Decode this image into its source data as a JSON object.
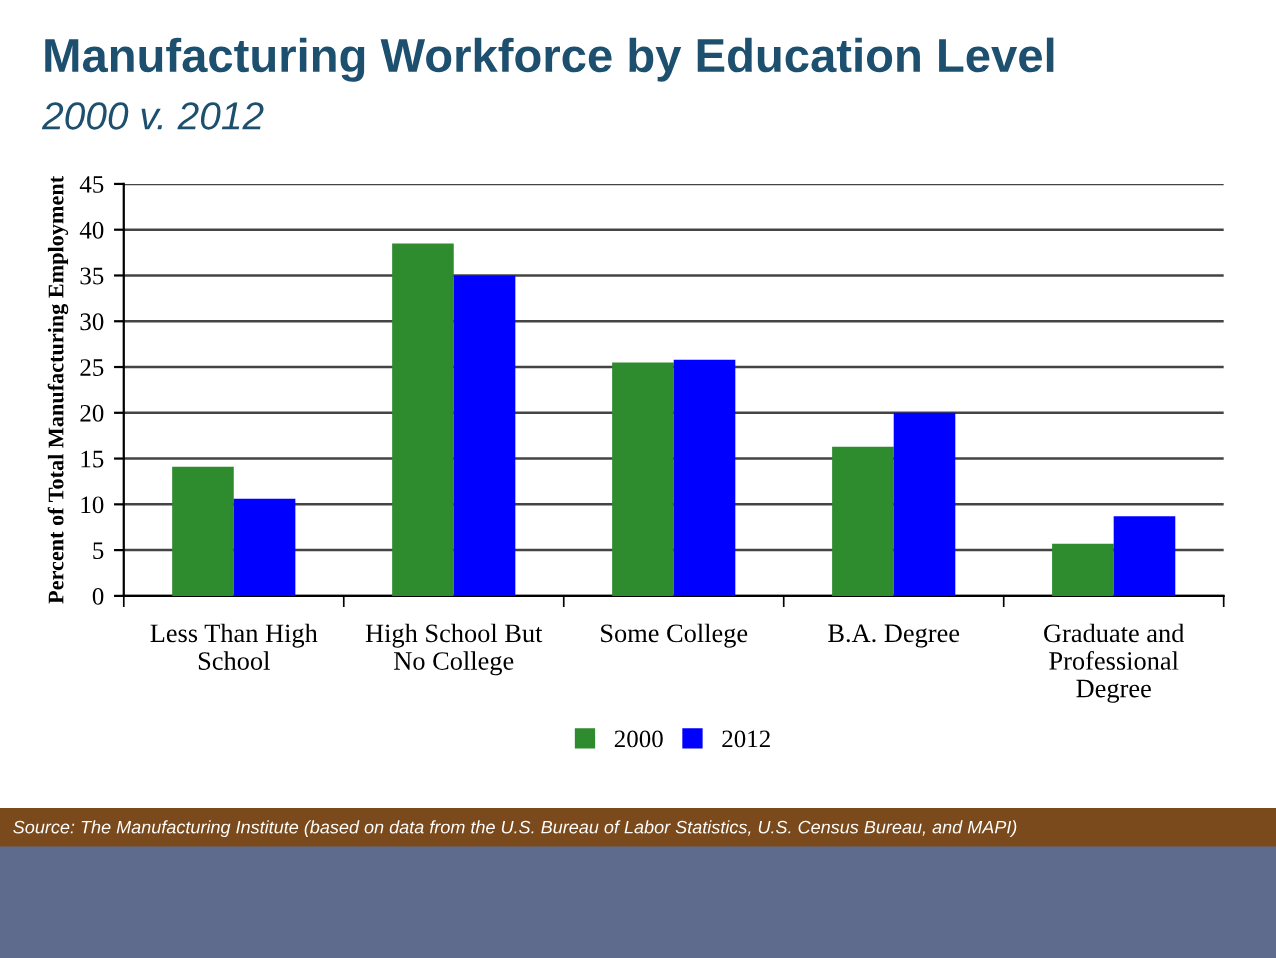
{
  "chart_data": {
    "type": "bar",
    "title": "Manufacturing Workforce by Education Level",
    "subtitle": "2000 v. 2012",
    "ylabel": "Percent of Total Manufacturing Employment",
    "categories": [
      "Less Than High School",
      "High School But No College",
      "Some College",
      "B.A. Degree",
      "Graduate and Professional Degree"
    ],
    "series": [
      {
        "name": "2000",
        "color": "#2e8b2e",
        "values": [
          14.1,
          38.5,
          25.5,
          16.3,
          5.7
        ]
      },
      {
        "name": "2012",
        "color": "#0000ff",
        "values": [
          10.6,
          35.0,
          25.8,
          20.0,
          8.7
        ]
      }
    ],
    "ylim": [
      0,
      45
    ],
    "yticks": [
      0,
      5,
      10,
      15,
      20,
      25,
      30,
      35,
      40,
      45
    ],
    "grid": "y",
    "legend": "bottom",
    "annotations": [
      "Source: The Manufacturing Institute (based on data from the U.S. Bureau of Labor Statistics, U.S. Census Bureau, and MAPI)"
    ]
  }
}
